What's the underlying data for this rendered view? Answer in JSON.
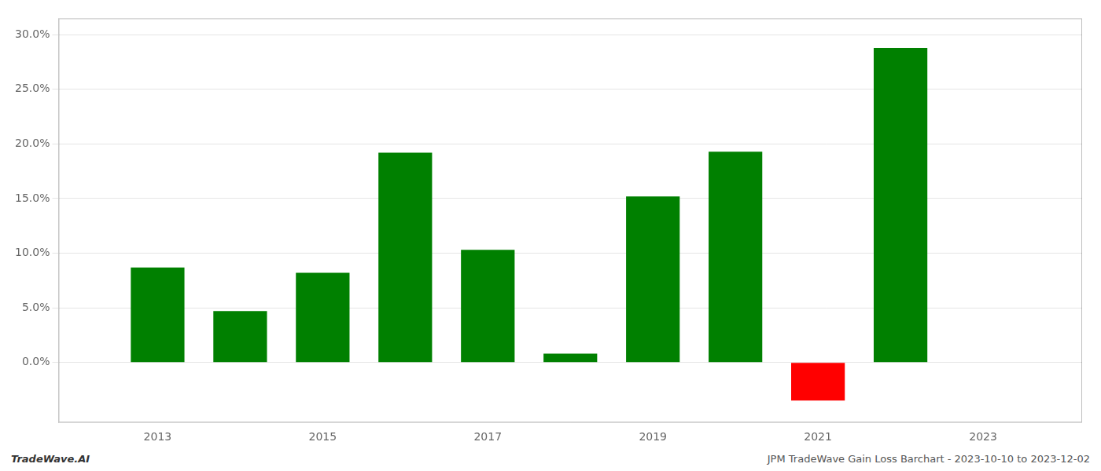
{
  "chart_data": {
    "type": "bar",
    "x": [
      2013,
      2014,
      2015,
      2016,
      2017,
      2018,
      2019,
      2020,
      2021,
      2022
    ],
    "values": [
      0.087,
      0.047,
      0.082,
      0.192,
      0.103,
      0.008,
      0.152,
      0.193,
      -0.035,
      0.288
    ],
    "colors": [
      "#008000",
      "#008000",
      "#008000",
      "#008000",
      "#008000",
      "#008000",
      "#008000",
      "#008000",
      "#ff0000",
      "#008000"
    ],
    "xlim": [
      2011.8,
      2024.2
    ],
    "xticks": [
      2013,
      2015,
      2017,
      2019,
      2021,
      2023
    ],
    "ylim": [
      -0.055,
      0.315
    ],
    "yticks": [
      {
        "value": 0.0,
        "label": "0.0%"
      },
      {
        "value": 0.05,
        "label": "5.0%"
      },
      {
        "value": 0.1,
        "label": "10.0%"
      },
      {
        "value": 0.15,
        "label": "15.0%"
      },
      {
        "value": 0.2,
        "label": "20.0%"
      },
      {
        "value": 0.25,
        "label": "25.0%"
      },
      {
        "value": 0.3,
        "label": "30.0%"
      }
    ],
    "grid": true,
    "annotations": [
      "TradeWave.AI",
      "JPM TradeWave Gain Loss Barchart - 2023-10-10 to 2023-12-02"
    ]
  }
}
